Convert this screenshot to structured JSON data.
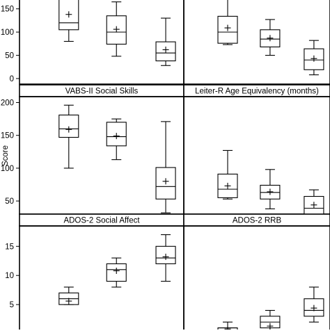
{
  "chart_data": {
    "type": "box",
    "ylabel": "Score",
    "panels": [
      {
        "title": "",
        "yticks": [
          0,
          50,
          100,
          150
        ],
        "ylim": [
          -12,
          178
        ],
        "boxes": [
          {
            "min": 80,
            "q1": 105,
            "median": 120,
            "q3": 178,
            "max": 178,
            "mean": 138
          },
          {
            "min": 48,
            "q1": 74,
            "median": 100,
            "q3": 135,
            "max": 165,
            "mean": 106
          },
          {
            "min": 28,
            "q1": 38,
            "median": 55,
            "q3": 79,
            "max": 130,
            "mean": 62
          }
        ]
      },
      {
        "title": "",
        "yticks": [],
        "ylim": [
          -12,
          178
        ],
        "boxes": [
          {
            "min": 73,
            "q1": 76,
            "median": 100,
            "q3": 134,
            "max": 178,
            "mean": 109
          },
          {
            "min": 50,
            "q1": 68,
            "median": 85,
            "q3": 105,
            "max": 127,
            "mean": 87
          },
          {
            "min": 8,
            "q1": 19,
            "median": 40,
            "q3": 64,
            "max": 82,
            "mean": 43
          }
        ]
      },
      {
        "title": "VABS-II Social Skills",
        "yticks": [
          50,
          100,
          150,
          200
        ],
        "ylim": [
          30,
          209
        ],
        "boxes": [
          {
            "min": 100,
            "q1": 147,
            "median": 160,
            "q3": 181,
            "max": 196,
            "mean": 159
          },
          {
            "min": 113,
            "q1": 134,
            "median": 148,
            "q3": 170,
            "max": 175,
            "mean": 149
          },
          {
            "min": 32,
            "q1": 53,
            "median": 72,
            "q3": 101,
            "max": 171,
            "mean": 80
          }
        ]
      },
      {
        "title": "Leiter-R Age Equivalency (months)",
        "yticks": [],
        "ylim": [
          30,
          209
        ],
        "boxes": [
          {
            "min": 53,
            "q1": 55,
            "median": 68,
            "q3": 91,
            "max": 127,
            "mean": 73
          },
          {
            "min": 38,
            "q1": 53,
            "median": 63,
            "q3": 74,
            "max": 98,
            "mean": 64
          },
          {
            "min": 25,
            "q1": 28,
            "median": 39,
            "q3": 57,
            "max": 67,
            "mean": 44
          }
        ]
      },
      {
        "title": "ADOS-2 Social Affect",
        "yticks": [
          5,
          10,
          15
        ],
        "ylim": [
          0,
          18.5
        ],
        "boxes": [
          {
            "min": 5,
            "q1": 5,
            "median": 6,
            "q3": 7,
            "max": 8,
            "mean": 5.6
          },
          {
            "min": 8,
            "q1": 9,
            "median": 11,
            "q3": 12,
            "max": 13,
            "mean": 10.8
          },
          {
            "min": 9,
            "q1": 12,
            "median": 13,
            "q3": 15,
            "max": 17,
            "mean": 13.2
          }
        ]
      },
      {
        "title": "ADOS-2 RRB",
        "yticks": [],
        "ylim": [
          0,
          18.5
        ],
        "boxes": [
          {
            "min": 0,
            "q1": 0,
            "median": 1,
            "q3": 1,
            "max": 2,
            "mean": 0.8
          },
          {
            "min": 0,
            "q1": 1,
            "median": 2,
            "q3": 3,
            "max": 4,
            "mean": 1.3
          },
          {
            "min": 2,
            "q1": 3,
            "median": 4,
            "q3": 6,
            "max": 8,
            "mean": 4.4
          }
        ]
      }
    ]
  }
}
